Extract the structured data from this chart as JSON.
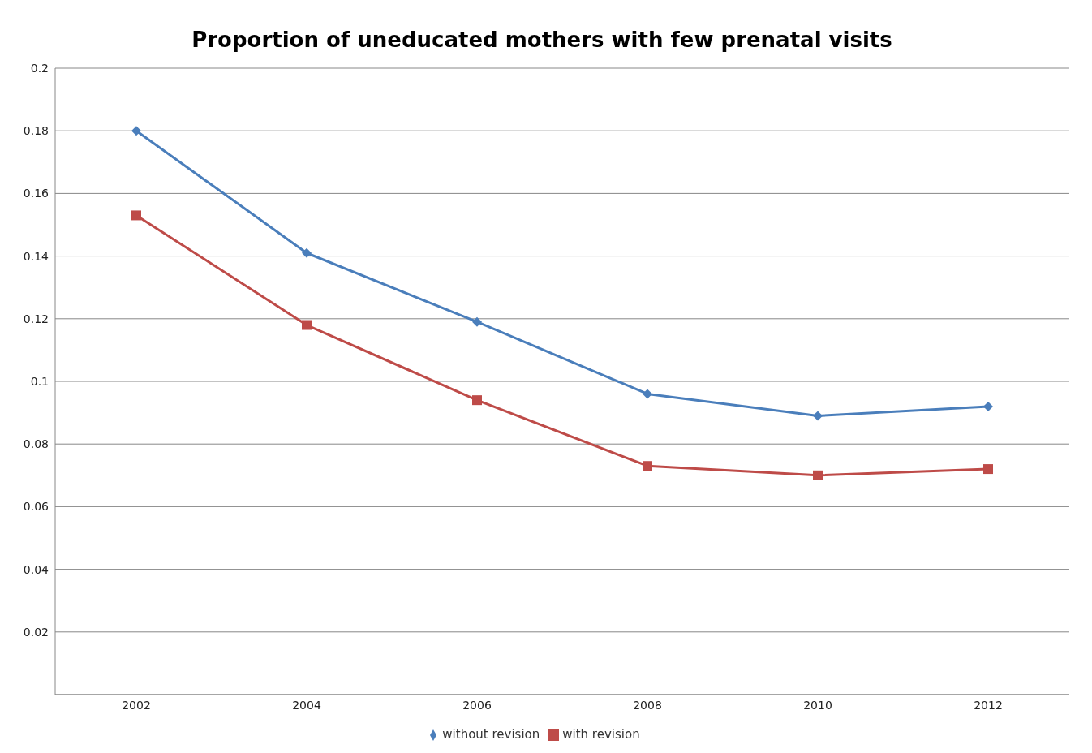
{
  "chart_data": {
    "type": "line",
    "title": "Proportion of uneducated mothers with few prenatal visits",
    "categories": [
      "2002",
      "2004",
      "2006",
      "2008",
      "2010",
      "2012"
    ],
    "series": [
      {
        "name": "without revision",
        "color": "#4a7ebb",
        "marker": "diamond",
        "values": [
          0.18,
          0.141,
          0.119,
          0.096,
          0.089,
          0.092
        ]
      },
      {
        "name": "with revision",
        "color": "#be4b48",
        "marker": "square",
        "values": [
          0.153,
          0.118,
          0.094,
          0.073,
          0.07,
          0.072
        ]
      }
    ],
    "ylim": [
      0,
      0.2
    ],
    "yticks": [
      {
        "value": 0,
        "label": null
      },
      0.02,
      0.04,
      0.06,
      0.08,
      0.1,
      0.12,
      0.14,
      0.16,
      0.18,
      0.2
    ],
    "grid": "y",
    "legend": "bottom"
  }
}
